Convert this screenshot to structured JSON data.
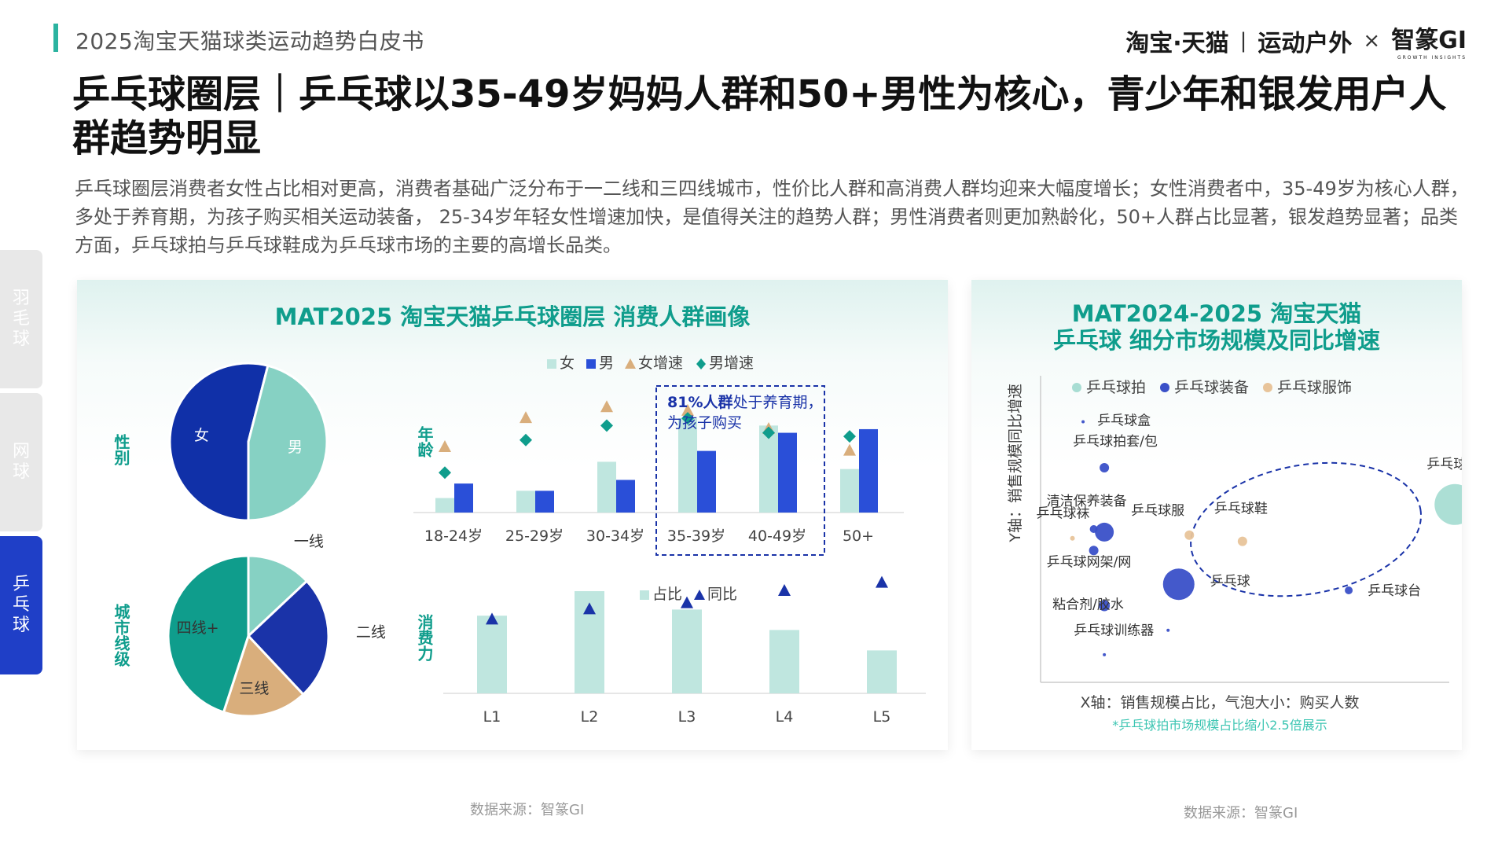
{
  "header": {
    "report_title": "2025淘宝天猫球类运动趋势白皮书",
    "logo_brand": "淘宝·天猫",
    "logo_divider": "|",
    "logo_channel": "运动户外",
    "logo_x": "×",
    "logo_partner": "智篆GI",
    "logo_partner_sub": "GROWTH INSIGHTS"
  },
  "page_title": "乒乓球圈层｜乒乓球以35-49岁妈妈人群和50+男性为核心，青少年和银发用户人群趋势明显",
  "summary": "乒乓球圈层消费者女性占比相对更高，消费者基础广泛分布于一二线和三四线城市，性价比人群和高消费人群均迎来大幅度增长；女性消费者中，35-49岁为核心人群，多处于养育期，为孩子购买相关运动装备， 25-34岁年轻女性增速加快，是值得关注的趋势人群；男性消费者则更加熟龄化，50+人群占比显著，银发趋势显著；品类方面，乒乓球拍与乒乓球鞋成为乒乓球市场的主要的高增长品类。",
  "side_tabs": [
    {
      "label": "羽毛球",
      "active": false
    },
    {
      "label": "网球",
      "active": false
    },
    {
      "label": "乒乓球",
      "active": true
    }
  ],
  "colors": {
    "teal_light": "#86d1c3",
    "blue_dark": "#1030a8",
    "blue_bar": "#2a4fd8",
    "tan": "#d9ae7c",
    "teal_dark": "#0f9d8c",
    "tab_active": "#1f3fc7"
  },
  "left_panel": {
    "title": "MAT2025 淘宝天猫乒乓球圈层 消费人群画像",
    "row_labels": {
      "gender": "性别",
      "city": "城市线级",
      "age": "年龄",
      "spending": "消费力"
    },
    "callout": {
      "highlight": "81%人群",
      "line1_rest": "处于养育期，",
      "line2": "为孩子购买"
    },
    "source": "数据来源：智篆GI"
  },
  "right_panel": {
    "title_line1": "MAT2024-2025 淘宝天猫",
    "title_line2": "乒乓球 细分市场规模及同比增速",
    "y_axis_label": "Y轴：销售规模同比增速",
    "x_axis_label": "X轴：销售规模占比，气泡大小：购买人数",
    "footnote": "*乒乓球拍市场规模占比缩小2.5倍展示",
    "source": "数据来源：智篆GI"
  },
  "chart_data": [
    {
      "type": "pie",
      "name": "gender",
      "slices": [
        {
          "label": "女",
          "value": 54,
          "color": "#1030a8"
        },
        {
          "label": "男",
          "value": 46,
          "color": "#86d1c3"
        }
      ]
    },
    {
      "type": "pie",
      "name": "city",
      "slices": [
        {
          "label": "一线",
          "value": 13,
          "color": "#86d1c3"
        },
        {
          "label": "二线",
          "value": 25,
          "color": "#1a33a8"
        },
        {
          "label": "三线",
          "value": 17,
          "color": "#d9ae7c"
        },
        {
          "label": "四线+",
          "value": 45,
          "color": "#0f9d8c"
        }
      ]
    },
    {
      "type": "bar",
      "name": "age",
      "categories": [
        "18-24岁",
        "25-29岁",
        "30-34岁",
        "35-39岁",
        "40-49岁",
        "50+"
      ],
      "series": [
        {
          "name": "女",
          "kind": "bar",
          "color": "#bfe6df",
          "values": [
            2,
            3,
            7,
            13,
            12,
            6
          ]
        },
        {
          "name": "男",
          "kind": "bar",
          "color": "#2a4fd8",
          "values": [
            4,
            3,
            4.5,
            8.5,
            11,
            11.5
          ]
        },
        {
          "name": "女增速",
          "kind": "marker",
          "marker": "triangle",
          "color": "#d9ae7c",
          "values": [
            9,
            13,
            14.5,
            14,
            11.5,
            8.5
          ]
        },
        {
          "name": "男增速",
          "kind": "marker",
          "marker": "diamond",
          "color": "#0f9d8c",
          "values": [
            5.5,
            10,
            12,
            13,
            11,
            10.5
          ]
        }
      ],
      "ylim": [
        0,
        18
      ]
    },
    {
      "type": "bar",
      "name": "spending",
      "categories": [
        "L1",
        "L2",
        "L3",
        "L4",
        "L5"
      ],
      "series": [
        {
          "name": "占比",
          "kind": "bar",
          "color": "#bfe6df",
          "values": [
            19,
            25,
            20.5,
            15.5,
            10.5
          ]
        },
        {
          "name": "同比",
          "kind": "marker",
          "marker": "triangle",
          "color": "#1a33a8",
          "values": [
            18,
            20.5,
            22,
            25,
            27
          ]
        }
      ],
      "ylim": [
        0,
        30
      ]
    },
    {
      "type": "scatter",
      "name": "segments",
      "xlabel": "X轴：销售规模占比，气泡大小：购买人数",
      "ylabel": "Y轴：销售规模同比增速",
      "legend": [
        {
          "name": "乒乓球拍",
          "color": "#a8ddd3"
        },
        {
          "name": "乒乓球装备",
          "color": "#3a50c8"
        },
        {
          "name": "乒乓球服饰",
          "color": "#e8c49a"
        }
      ],
      "xlim": [
        0,
        100
      ],
      "ylim": [
        0,
        100
      ],
      "points": [
        {
          "label": "乒乓球盒",
          "group": "乒乓球装备",
          "x": 4,
          "y": 85,
          "size": 2
        },
        {
          "label": "乒乓球拍套/包",
          "group": "乒乓球装备",
          "x": 6,
          "y": 70,
          "size": 6
        },
        {
          "label": "清洁保养装备",
          "group": "乒乓球装备",
          "x": 5,
          "y": 50,
          "size": 5
        },
        {
          "label": "乒乓球袜",
          "group": "乒乓球服饰",
          "x": 3,
          "y": 47,
          "size": 3
        },
        {
          "label": "乒乓球服",
          "group": "乒乓球装备",
          "x": 6,
          "y": 49,
          "size": 12
        },
        {
          "label": "乒乓球鞋",
          "group": "乒乓球服饰",
          "x": 19,
          "y": 46,
          "size": 6
        },
        {
          "label": "乒乓球网架/网",
          "group": "乒乓球装备",
          "x": 5,
          "y": 43,
          "size": 6
        },
        {
          "label": "乒乓球",
          "group": "乒乓球装备",
          "x": 13,
          "y": 32,
          "size": 20
        },
        {
          "label": "乒乓球台",
          "group": "乒乓球装备",
          "x": 29,
          "y": 30,
          "size": 5
        },
        {
          "label": "粘合剂/胶水",
          "group": "乒乓球装备",
          "x": 6,
          "y": 25,
          "size": 7
        },
        {
          "label": "乒乓球训练器",
          "group": "乒乓球装备",
          "x": 12,
          "y": 17,
          "size": 2
        },
        {
          "label": "乒乓球拍",
          "group": "乒乓球拍",
          "x": 39,
          "y": 58,
          "size": 26
        },
        {
          "label": "",
          "group": "乒乓球服饰",
          "x": 14,
          "y": 48,
          "size": 6
        },
        {
          "label": "",
          "group": "乒乓球装备",
          "x": 6,
          "y": 9,
          "size": 1
        }
      ]
    }
  ]
}
